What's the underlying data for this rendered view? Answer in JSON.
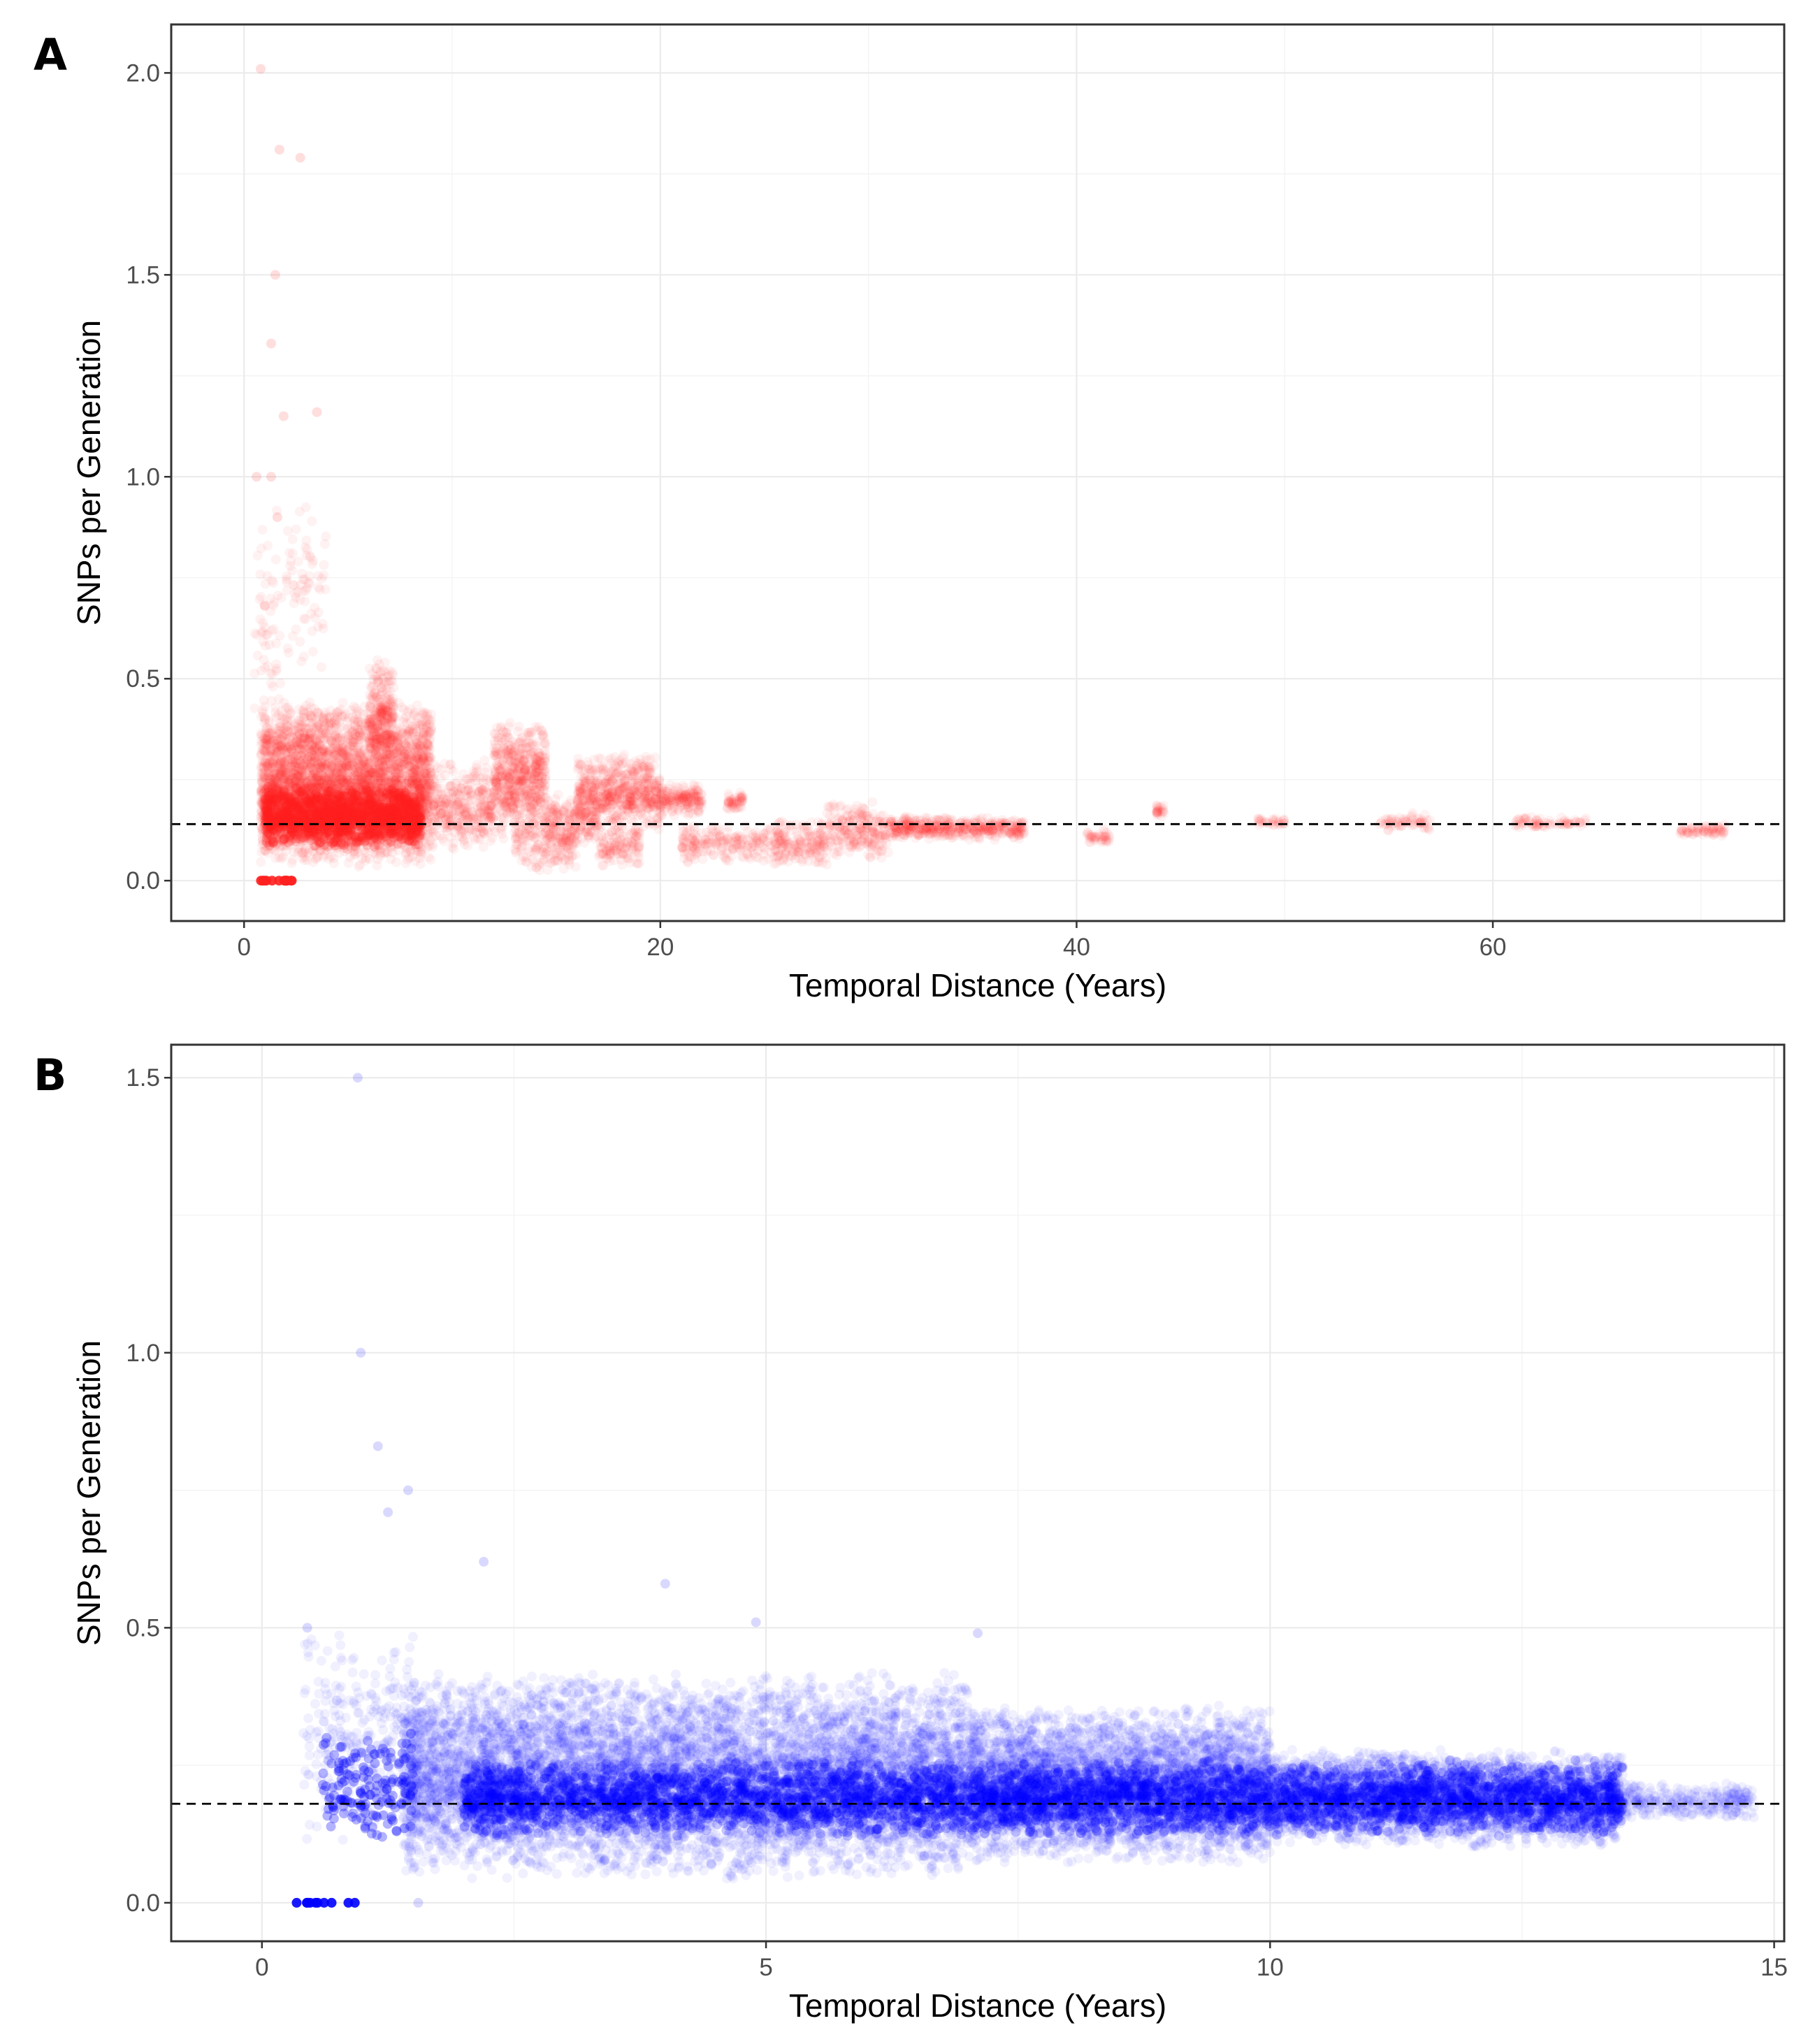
{
  "chart_data": [
    {
      "panel": "A",
      "type": "scatter",
      "xlabel": "Temporal Distance (Years)",
      "ylabel": "SNPs per Generation",
      "xlim": [
        -3.5,
        74
      ],
      "ylim": [
        -0.1,
        2.12
      ],
      "xticks": [
        0,
        20,
        40,
        60
      ],
      "yticks": [
        0.0,
        0.5,
        1.0,
        1.5,
        2.0
      ],
      "ytick_labels": [
        "0.0",
        "0.5",
        "1.0",
        "1.5",
        "2.0"
      ],
      "grid": true,
      "point_color": "#ff2020",
      "point_alpha": 0.06,
      "reference_line": {
        "y": 0.14,
        "style": "dashed",
        "color": "#000000"
      },
      "clusters": [
        {
          "x": [
            0.5,
            2.3
          ],
          "y": [
            0.0,
            0.0
          ],
          "n": 16,
          "a": 0.9
        },
        {
          "x": [
            0.5,
            1.8
          ],
          "y": [
            0.2,
            1.0
          ],
          "n": 60
        },
        {
          "x": [
            0.8,
            9
          ],
          "y": [
            0.03,
            0.45
          ],
          "n": 3800
        },
        {
          "x": [
            1,
            8.5
          ],
          "y": [
            0.08,
            0.24
          ],
          "n": 1500,
          "a": 0.2
        },
        {
          "x": [
            2,
            4
          ],
          "y": [
            0.5,
            0.95
          ],
          "n": 70
        },
        {
          "x": [
            6,
            7.2
          ],
          "y": [
            0.28,
            0.55
          ],
          "n": 220
        },
        {
          "x": [
            9,
            12
          ],
          "y": [
            0.07,
            0.3
          ],
          "n": 350
        },
        {
          "x": [
            12,
            14.5
          ],
          "y": [
            0.1,
            0.4
          ],
          "n": 600
        },
        {
          "x": [
            13,
            16
          ],
          "y": [
            0.02,
            0.15
          ],
          "n": 150
        },
        {
          "x": [
            14.5,
            17
          ],
          "y": [
            0.08,
            0.22
          ],
          "n": 200
        },
        {
          "x": [
            16,
            20
          ],
          "y": [
            0.12,
            0.32
          ],
          "n": 600
        },
        {
          "x": [
            17,
            19
          ],
          "y": [
            0.03,
            0.14
          ],
          "n": 120
        },
        {
          "x": [
            20,
            22
          ],
          "y": [
            0.16,
            0.24
          ],
          "n": 180
        },
        {
          "x": [
            21,
            26
          ],
          "y": [
            0.04,
            0.14
          ],
          "n": 220
        },
        {
          "x": [
            23.2,
            24
          ],
          "y": [
            0.17,
            0.22
          ],
          "n": 50
        },
        {
          "x": [
            25.5,
            28
          ],
          "y": [
            0.03,
            0.16
          ],
          "n": 160
        },
        {
          "x": [
            28,
            31
          ],
          "y": [
            0.05,
            0.2
          ],
          "n": 220
        },
        {
          "x": [
            31,
            37.5
          ],
          "y": [
            0.1,
            0.16
          ],
          "n": 450
        },
        {
          "x": [
            40.5,
            41.6
          ],
          "y": [
            0.09,
            0.13
          ],
          "n": 40
        },
        {
          "x": [
            43.8,
            44.2
          ],
          "y": [
            0.15,
            0.19
          ],
          "n": 25
        },
        {
          "x": [
            48.7,
            50
          ],
          "y": [
            0.13,
            0.16
          ],
          "n": 30
        },
        {
          "x": [
            54.5,
            57
          ],
          "y": [
            0.12,
            0.17
          ],
          "n": 60
        },
        {
          "x": [
            61,
            64.5
          ],
          "y": [
            0.13,
            0.16
          ],
          "n": 70
        },
        {
          "x": [
            69,
            71.3
          ],
          "y": [
            0.11,
            0.14
          ],
          "n": 70
        }
      ],
      "outliers": [
        {
          "x": 0.8,
          "y": 2.01
        },
        {
          "x": 1.7,
          "y": 1.81
        },
        {
          "x": 2.7,
          "y": 1.79
        },
        {
          "x": 1.5,
          "y": 1.5
        },
        {
          "x": 1.3,
          "y": 1.33
        },
        {
          "x": 1.9,
          "y": 1.15
        },
        {
          "x": 3.5,
          "y": 1.16
        },
        {
          "x": 1.3,
          "y": 1.0
        },
        {
          "x": 0.6,
          "y": 1.0
        },
        {
          "x": 1.0,
          "y": 0.68
        },
        {
          "x": 1.6,
          "y": 0.9
        }
      ]
    },
    {
      "panel": "B",
      "type": "scatter",
      "xlabel": "Temporal Distance (Years)",
      "ylabel": "SNPs per Generation",
      "xlim": [
        -0.9,
        15.1
      ],
      "ylim": [
        -0.07,
        1.56
      ],
      "xticks": [
        0,
        5,
        10,
        15
      ],
      "yticks": [
        0.0,
        0.5,
        1.0,
        1.5
      ],
      "ytick_labels": [
        "0.0",
        "0.5",
        "1.0",
        "1.5"
      ],
      "grid": true,
      "point_color": "#0000ff",
      "point_alpha": 0.06,
      "reference_line": {
        "y": 0.18,
        "style": "dashed",
        "color": "#000000"
      },
      "clusters": [
        {
          "x": [
            0.25,
            0.95
          ],
          "y": [
            0.0,
            0.0
          ],
          "n": 10,
          "a": 0.9
        },
        {
          "x": [
            0.4,
            1.5
          ],
          "y": [
            0.1,
            0.5
          ],
          "n": 280
        },
        {
          "x": [
            0.6,
            1.5
          ],
          "y": [
            0.1,
            0.32
          ],
          "n": 160,
          "a": 0.3
        },
        {
          "x": [
            1.4,
            7
          ],
          "y": [
            0.04,
            0.42
          ],
          "n": 7500
        },
        {
          "x": [
            7,
            10
          ],
          "y": [
            0.07,
            0.36
          ],
          "n": 4200
        },
        {
          "x": [
            10,
            13.5
          ],
          "y": [
            0.1,
            0.28
          ],
          "n": 3000
        },
        {
          "x": [
            2,
            13.5
          ],
          "y": [
            0.12,
            0.26
          ],
          "n": 4500,
          "a": 0.22
        },
        {
          "x": [
            13.5,
            14.8
          ],
          "y": [
            0.15,
            0.22
          ],
          "n": 300
        }
      ],
      "outliers": [
        {
          "x": 0.95,
          "y": 1.5
        },
        {
          "x": 0.98,
          "y": 1.0
        },
        {
          "x": 1.15,
          "y": 0.83
        },
        {
          "x": 1.45,
          "y": 0.75
        },
        {
          "x": 1.25,
          "y": 0.71
        },
        {
          "x": 0.45,
          "y": 0.5
        },
        {
          "x": 2.2,
          "y": 0.62
        },
        {
          "x": 4.0,
          "y": 0.58
        },
        {
          "x": 4.9,
          "y": 0.51
        },
        {
          "x": 7.1,
          "y": 0.49
        },
        {
          "x": 1.55,
          "y": 0.0
        }
      ]
    }
  ]
}
